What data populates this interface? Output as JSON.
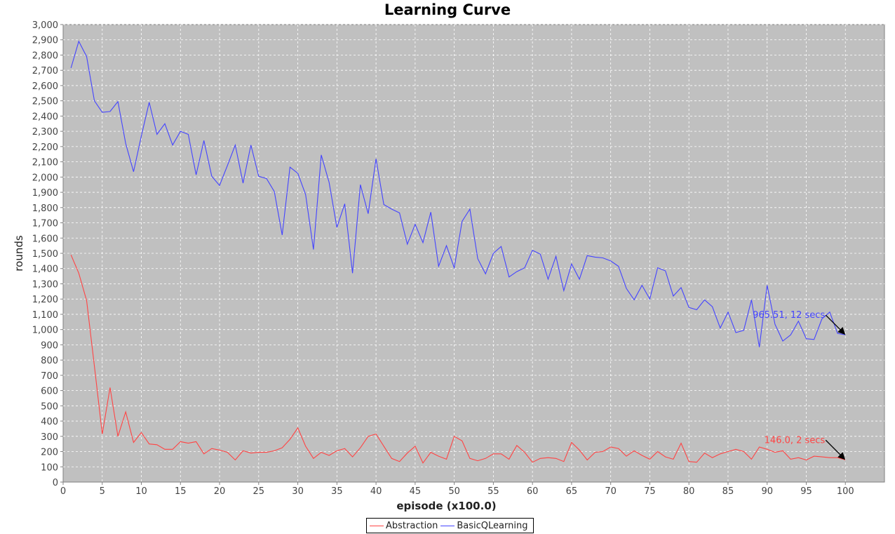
{
  "chart_data": {
    "type": "line",
    "title": "Learning Curve",
    "xlabel": "episode (x100.0)",
    "ylabel": "rounds",
    "xlim": [
      0,
      105
    ],
    "ylim": [
      0,
      3000
    ],
    "xticks": [
      0,
      5,
      10,
      15,
      20,
      25,
      30,
      35,
      40,
      45,
      50,
      55,
      60,
      65,
      70,
      75,
      80,
      85,
      90,
      95,
      100
    ],
    "yticks": [
      0,
      100,
      200,
      300,
      400,
      500,
      600,
      700,
      800,
      900,
      1000,
      1100,
      1200,
      1300,
      1400,
      1500,
      1600,
      1700,
      1800,
      1900,
      2000,
      2100,
      2200,
      2300,
      2400,
      2500,
      2600,
      2700,
      2800,
      2900,
      3000
    ],
    "grid": true,
    "legend_position": "bottom-center",
    "x": [
      1,
      2,
      3,
      4,
      5,
      6,
      7,
      8,
      9,
      10,
      11,
      12,
      13,
      14,
      15,
      16,
      17,
      18,
      19,
      20,
      21,
      22,
      23,
      24,
      25,
      26,
      27,
      28,
      29,
      30,
      31,
      32,
      33,
      34,
      35,
      36,
      37,
      38,
      39,
      40,
      41,
      42,
      43,
      44,
      45,
      46,
      47,
      48,
      49,
      50,
      51,
      52,
      53,
      54,
      55,
      56,
      57,
      58,
      59,
      60,
      61,
      62,
      63,
      64,
      65,
      66,
      67,
      68,
      69,
      70,
      71,
      72,
      73,
      74,
      75,
      76,
      77,
      78,
      79,
      80,
      81,
      82,
      83,
      84,
      85,
      86,
      87,
      88,
      89,
      90,
      91,
      92,
      93,
      94,
      95,
      96,
      97,
      98,
      99,
      100
    ],
    "series": [
      {
        "name": "Abstraction",
        "color": "#ff4444",
        "values": [
          1490,
          1370,
          1190,
          760,
          315,
          620,
          300,
          460,
          260,
          325,
          250,
          245,
          215,
          215,
          265,
          255,
          265,
          185,
          220,
          210,
          195,
          145,
          205,
          190,
          195,
          195,
          205,
          225,
          280,
          355,
          235,
          155,
          195,
          175,
          205,
          220,
          165,
          225,
          300,
          315,
          235,
          155,
          135,
          190,
          235,
          125,
          195,
          170,
          150,
          300,
          270,
          155,
          140,
          155,
          185,
          185,
          150,
          240,
          195,
          130,
          155,
          160,
          155,
          135,
          260,
          210,
          145,
          195,
          200,
          230,
          220,
          170,
          205,
          175,
          150,
          200,
          165,
          150,
          255,
          135,
          130,
          190,
          160,
          185,
          200,
          215,
          200,
          150,
          230,
          215,
          195,
          205,
          150,
          160,
          145,
          170,
          165,
          160,
          160,
          146
        ]
      },
      {
        "name": "BasicQLearning",
        "color": "#4444ff",
        "values": [
          2715,
          2890,
          2790,
          2500,
          2425,
          2430,
          2495,
          2220,
          2035,
          2270,
          2490,
          2280,
          2350,
          2210,
          2300,
          2280,
          2015,
          2240,
          2005,
          1945,
          2075,
          2210,
          1960,
          2210,
          2005,
          1990,
          1905,
          1620,
          2065,
          2025,
          1885,
          1525,
          2145,
          1965,
          1670,
          1825,
          1370,
          1950,
          1760,
          2120,
          1820,
          1790,
          1765,
          1560,
          1690,
          1570,
          1770,
          1415,
          1550,
          1405,
          1710,
          1790,
          1465,
          1365,
          1500,
          1545,
          1345,
          1380,
          1405,
          1520,
          1495,
          1330,
          1480,
          1255,
          1430,
          1330,
          1485,
          1475,
          1470,
          1450,
          1415,
          1270,
          1195,
          1290,
          1200,
          1405,
          1385,
          1220,
          1275,
          1145,
          1130,
          1195,
          1150,
          1010,
          1115,
          980,
          995,
          1195,
          885,
          1290,
          1035,
          925,
          965,
          1055,
          940,
          935,
          1070,
          1115,
          975,
          966
        ]
      }
    ],
    "annotations": [
      {
        "text": "965.51, 12 secs",
        "x": 100,
        "y": 966,
        "series": "BasicQLearning"
      },
      {
        "text": "146.0, 2 secs",
        "x": 100,
        "y": 146,
        "series": "Abstraction"
      }
    ]
  },
  "style": {
    "plot_background": "#c0c0c0",
    "grid_color": "#ffffff",
    "axis_color": "#808080",
    "annotation_arrow_color": "#000000"
  }
}
